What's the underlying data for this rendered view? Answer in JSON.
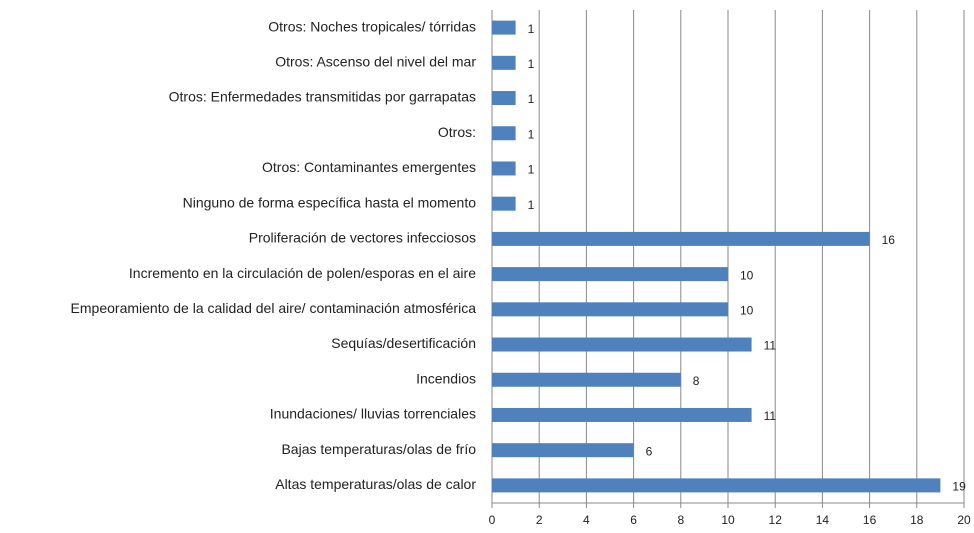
{
  "chart_data": {
    "type": "barh",
    "categories": [
      "Otros: Noches tropicales/ tórridas",
      "Otros: Ascenso del nivel del mar",
      "Otros: Enfermedades transmitidas por garrapatas",
      "Otros:",
      "Otros: Contaminantes emergentes",
      "Ninguno de forma específica hasta el momento",
      "Proliferación de vectores infecciosos",
      "Incremento en la circulación de polen/esporas en el aire",
      "Empeoramiento de la calidad del aire/ contaminación atmosférica",
      "Sequías/desertificación",
      "Incendios",
      "Inundaciones/ lluvias torrenciales",
      "Bajas temperaturas/olas de frío",
      "Altas temperaturas/olas de calor"
    ],
    "values": [
      1,
      1,
      1,
      1,
      1,
      1,
      16,
      10,
      10,
      11,
      8,
      11,
      6,
      19
    ],
    "color": "#4f81bd",
    "xlim": [
      0,
      20
    ],
    "xticks": [
      0,
      2,
      4,
      6,
      8,
      10,
      12,
      14,
      16,
      18,
      20
    ],
    "grid": true
  }
}
